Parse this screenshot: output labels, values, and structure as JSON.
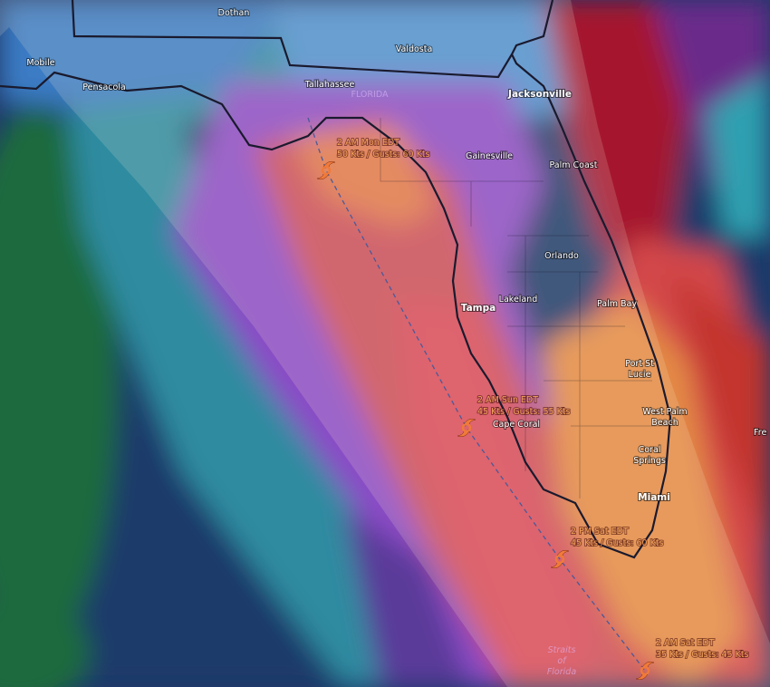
{
  "map": {
    "cities": [
      {
        "lines": [
          "Dothan"
        ]
      },
      {
        "lines": [
          "Mobile"
        ]
      },
      {
        "lines": [
          "Pensacola"
        ]
      },
      {
        "lines": [
          "Valdosta"
        ]
      },
      {
        "lines": [
          "Tallahassee"
        ]
      },
      {
        "lines": [
          "FLORIDA"
        ]
      },
      {
        "lines": [
          "Jacksonville"
        ]
      },
      {
        "lines": [
          "Gainesville"
        ]
      },
      {
        "lines": [
          "Palm Coast"
        ]
      },
      {
        "lines": [
          "Orlando"
        ]
      },
      {
        "lines": [
          "Lakeland"
        ]
      },
      {
        "lines": [
          "Tampa"
        ]
      },
      {
        "lines": [
          "Palm Bay"
        ]
      },
      {
        "lines": [
          "Port St",
          "Lucie"
        ]
      },
      {
        "lines": [
          "West Palm",
          "Beach"
        ]
      },
      {
        "lines": [
          "Coral",
          "Springs"
        ]
      },
      {
        "lines": [
          "Miami"
        ]
      },
      {
        "lines": [
          "Cape Coral"
        ]
      },
      {
        "lines": [
          "Fre"
        ]
      },
      {
        "lines": [
          "Straits",
          "of",
          "Florida"
        ]
      }
    ],
    "storms": [
      {
        "time": "2 AM Mon EDT",
        "wind": "50 Kts / Gusts: 60 Kts"
      },
      {
        "time": "2 AM Sun EDT",
        "wind": "45 Kts / Gusts: 55 Kts"
      },
      {
        "time": "2 PM Sat EDT",
        "wind": "45 Kts / Gusts: 60 Kts"
      },
      {
        "time": "2 AM Sat EDT",
        "wind": "35 Kts / Gusts: 45 Kts"
      }
    ]
  }
}
